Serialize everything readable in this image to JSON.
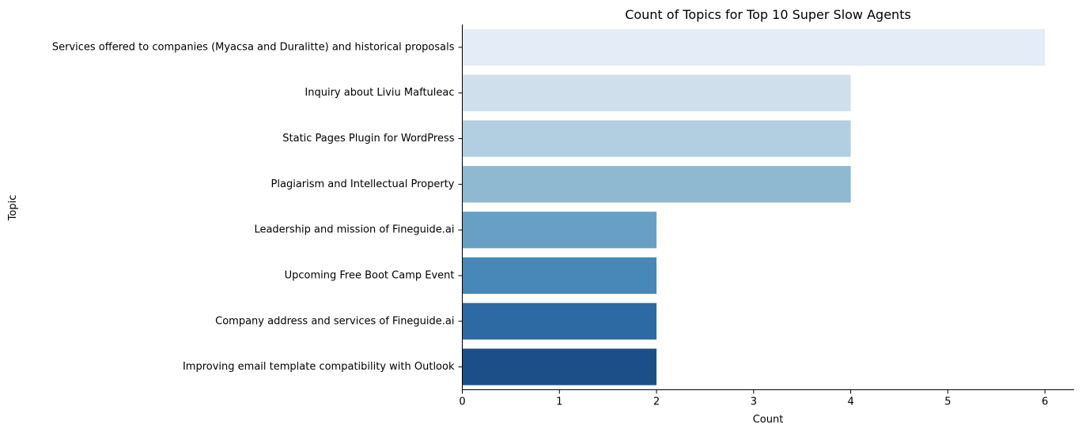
{
  "chart_data": {
    "type": "bar",
    "orientation": "horizontal",
    "title": "Count of Topics for Top 10 Super Slow Agents",
    "xlabel": "Count",
    "ylabel": "Topic",
    "xlim": [
      0,
      6.3
    ],
    "x_ticks": [
      "0",
      "1",
      "2",
      "3",
      "4",
      "5",
      "6"
    ],
    "grid": false,
    "legend": "none",
    "categories": [
      "Services offered to companies (Myacsa and Duralitte) and historical proposals",
      "Inquiry about Liviu Maftuleac",
      "Static Pages Plugin for WordPress",
      "Plagiarism and Intellectual Property",
      "Leadership and mission of Fineguide.ai",
      "Upcoming Free Boot Camp Event",
      "Company address and services of Fineguide.ai",
      "Improving email template compatibility with Outlook"
    ],
    "values": [
      6,
      4,
      4,
      4,
      2,
      2,
      2,
      2
    ],
    "colors": [
      "#e3ecf7",
      "#cfdfec",
      "#b2cfe1",
      "#8fb8d1",
      "#68a0c5",
      "#4788b8",
      "#2d6aa3",
      "#1c4f88"
    ]
  }
}
